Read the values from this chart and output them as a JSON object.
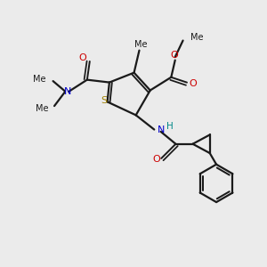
{
  "background_color": "#ebebeb",
  "bond_color": "#1a1a1a",
  "S_color": "#a08000",
  "N_color": "#0000cc",
  "O_color": "#cc0000",
  "H_color": "#008888",
  "figsize": [
    3.0,
    3.0
  ],
  "dpi": 100,
  "xlim": [
    0,
    10
  ],
  "ylim": [
    0,
    10
  ]
}
